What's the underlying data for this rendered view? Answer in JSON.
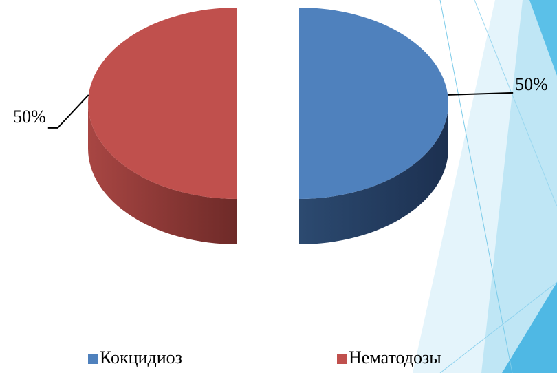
{
  "chart_data": {
    "type": "pie3d",
    "categories": [
      "Кокцидиоз",
      "Нематодозы"
    ],
    "values": [
      50,
      50
    ],
    "value_labels": [
      "50%",
      "50%"
    ],
    "colors": [
      "#4f81bd",
      "#c0504d"
    ],
    "legend": "bottom"
  }
}
